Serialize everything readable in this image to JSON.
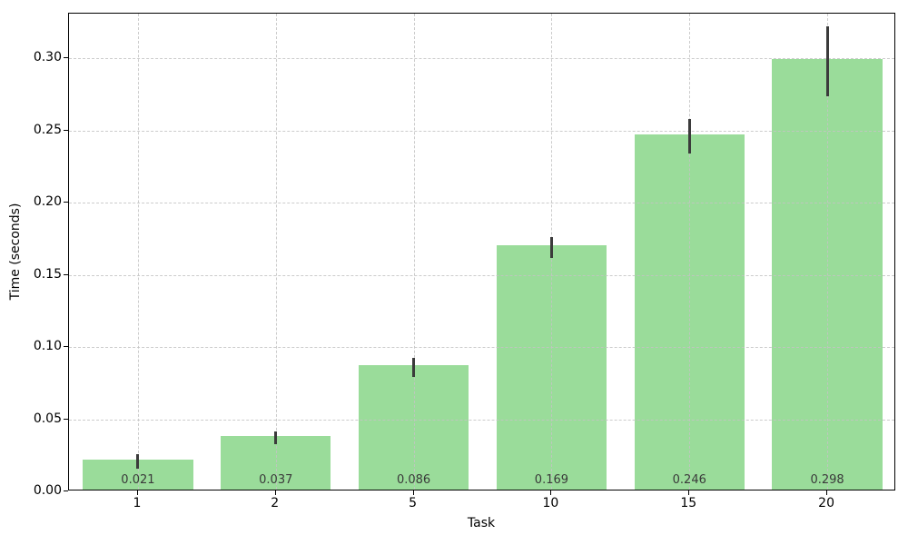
{
  "chart_data": {
    "type": "bar",
    "title": "",
    "xlabel": "Task",
    "ylabel": "Time (seconds)",
    "categories": [
      "1",
      "2",
      "5",
      "10",
      "15",
      "20"
    ],
    "values": [
      0.021,
      0.037,
      0.086,
      0.169,
      0.246,
      0.298
    ],
    "bar_value_labels": [
      "0.021",
      "0.037",
      "0.086",
      "0.169",
      "0.246",
      "0.298"
    ],
    "error_bars": [
      0.005,
      0.0045,
      0.0065,
      0.007,
      0.012,
      0.024
    ],
    "ylim": [
      0,
      0.331
    ],
    "yticks": [
      0.0,
      0.05,
      0.1,
      0.15,
      0.2,
      0.25,
      0.3
    ],
    "ytick_labels": [
      "0.00",
      "0.05",
      "0.10",
      "0.15",
      "0.20",
      "0.25",
      "0.30"
    ],
    "grid": true,
    "grid_style": "dashed",
    "legend": "none",
    "bar_color": "#9adc9a",
    "error_bar_color": "#3b3b3b",
    "grid_color": "#c3c3c3",
    "bar_label_color": "#3a3a3a",
    "axis_color": "#000000",
    "bar_width_fraction": 0.8
  }
}
